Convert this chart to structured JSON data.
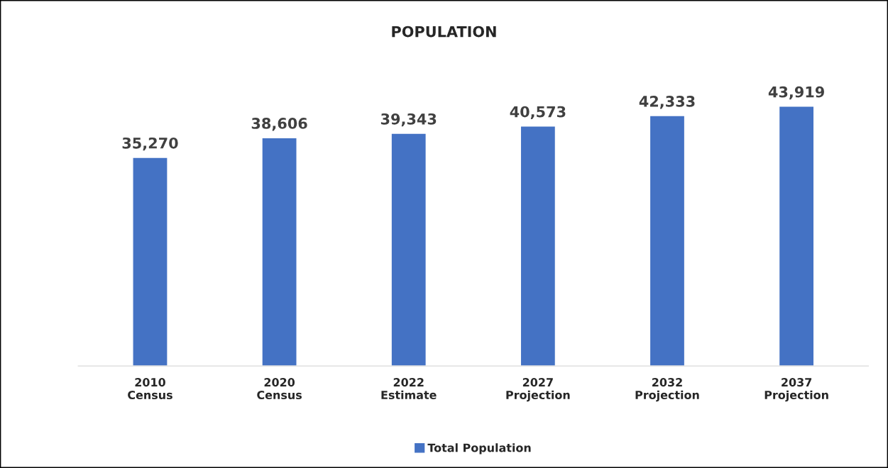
{
  "chart_data": {
    "type": "bar",
    "title": "POPULATION",
    "categories": [
      "2010\nCensus",
      "2020\nCensus",
      "2022\nEstimate",
      "2027\nProjection",
      "2032\nProjection",
      "2037\nProjection"
    ],
    "series": [
      {
        "name": "Total Population",
        "color": "#4472c4",
        "values": [
          35270,
          38606,
          39343,
          40573,
          42333,
          43919
        ],
        "value_labels": [
          "35,270",
          "38,606",
          "39,343",
          "40,573",
          "42,333",
          "43,919"
        ]
      }
    ],
    "tick_labels": "x",
    "grid": false,
    "legend": "bottom"
  }
}
